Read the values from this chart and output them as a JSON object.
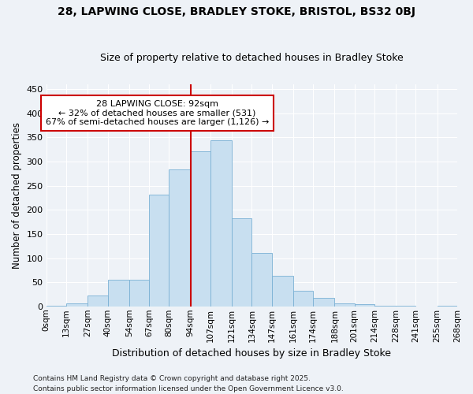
{
  "title": "28, LAPWING CLOSE, BRADLEY STOKE, BRISTOL, BS32 0BJ",
  "subtitle": "Size of property relative to detached houses in Bradley Stoke",
  "xlabel": "Distribution of detached houses by size in Bradley Stoke",
  "ylabel": "Number of detached properties",
  "bar_color": "#c8dff0",
  "bar_edge_color": "#7ab0d4",
  "background_color": "#eef2f7",
  "annotation_box_color": "#cc0000",
  "vline_color": "#cc0000",
  "bins": [
    0,
    13,
    27,
    40,
    54,
    67,
    80,
    94,
    107,
    121,
    134,
    147,
    161,
    174,
    188,
    201,
    214,
    228,
    241,
    255,
    268
  ],
  "bin_labels": [
    "0sqm",
    "13sqm",
    "27sqm",
    "40sqm",
    "54sqm",
    "67sqm",
    "80sqm",
    "94sqm",
    "107sqm",
    "121sqm",
    "134sqm",
    "147sqm",
    "161sqm",
    "174sqm",
    "188sqm",
    "201sqm",
    "214sqm",
    "228sqm",
    "241sqm",
    "255sqm",
    "268sqm"
  ],
  "heights": [
    2,
    6,
    22,
    55,
    55,
    232,
    283,
    322,
    344,
    183,
    110,
    63,
    32,
    18,
    6,
    4,
    2,
    1,
    0,
    1
  ],
  "ylim": [
    0,
    460
  ],
  "yticks": [
    0,
    50,
    100,
    150,
    200,
    250,
    300,
    350,
    400,
    450
  ],
  "vline_x": 94,
  "annotation_line1": "28 LAPWING CLOSE: 92sqm",
  "annotation_line2": "← 32% of detached houses are smaller (531)",
  "annotation_line3": "67% of semi-detached houses are larger (1,126) →",
  "footnote": "Contains HM Land Registry data © Crown copyright and database right 2025.\nContains public sector information licensed under the Open Government Licence v3.0."
}
